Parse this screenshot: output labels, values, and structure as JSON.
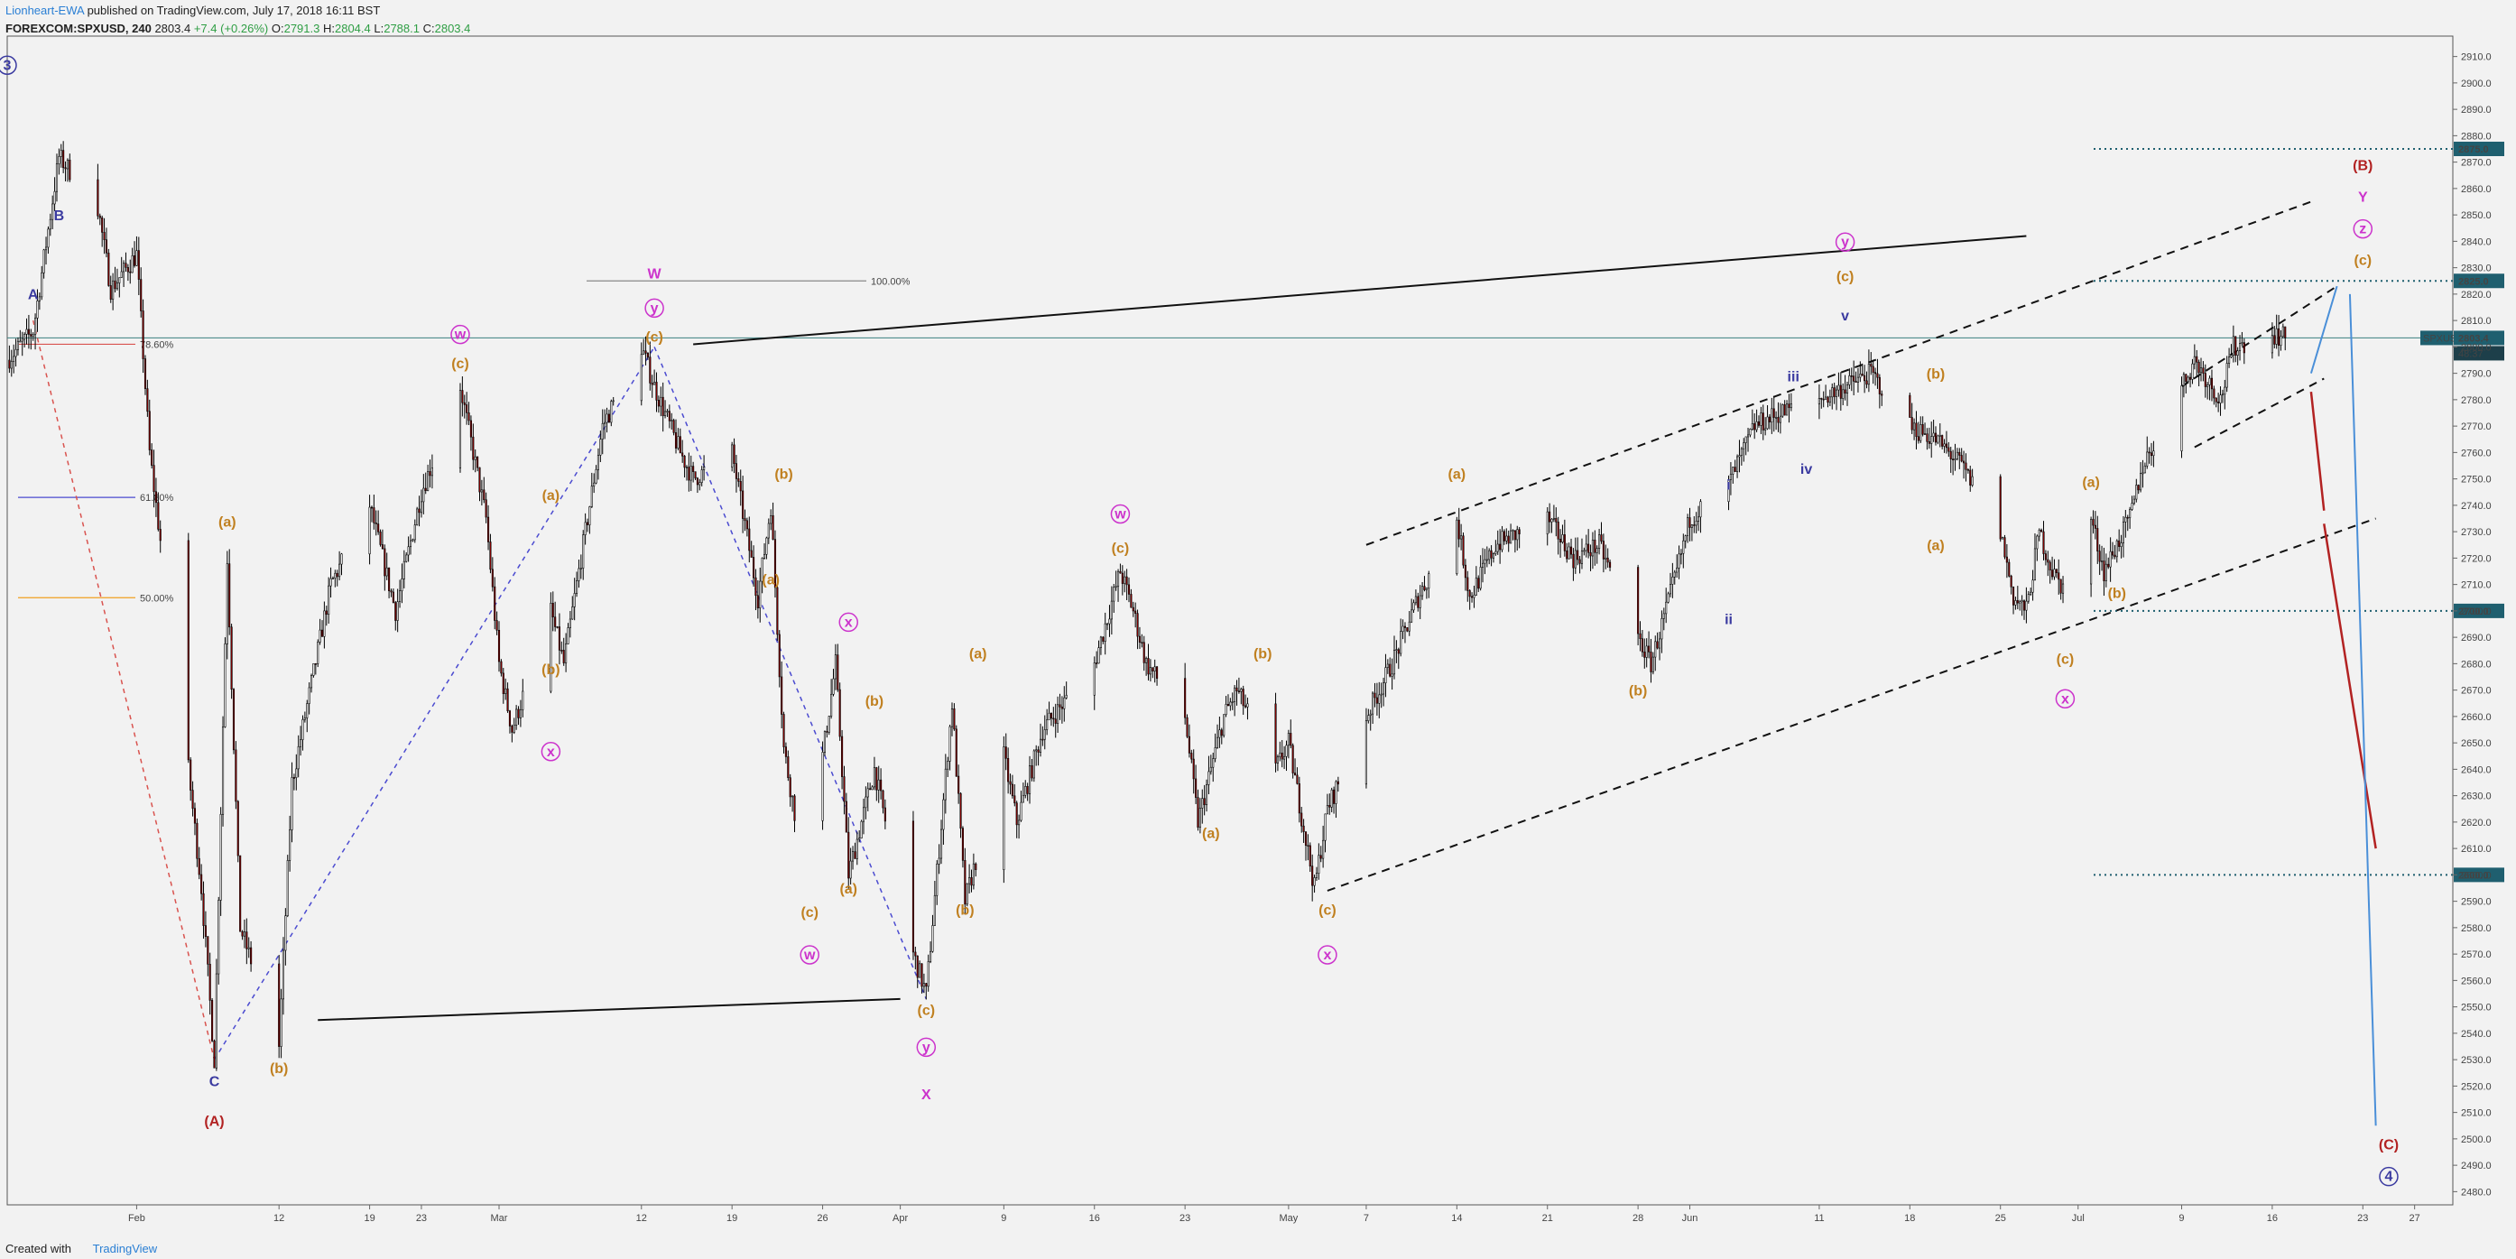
{
  "header": {
    "author": "Lionheart-EWA",
    "published": " published on TradingView.com, July 17, 2018 16:11 BST",
    "symbol": "FOREXCOM:SPXUSD, 240",
    "last": "2803.4",
    "change": "+7.4 (+0.26%)",
    "o_label": "O:",
    "o": "2791.3",
    "h_label": "H:",
    "h": "2804.4",
    "l_label": "L:",
    "l": "2788.1",
    "c_label": "C:",
    "c": "2803.4"
  },
  "footer": {
    "created_with": "Created with",
    "brand": "TradingView"
  },
  "colors": {
    "wave": "#c08020",
    "minor": "#3a3aa0",
    "corr": "#cc33cc",
    "red": "#b22222",
    "blue": "#4a8fd8",
    "level": "#1f5f6f"
  },
  "chart_data": {
    "type": "candlestick",
    "y_range": [
      2475,
      2915
    ],
    "y_ticks": [
      2480,
      2490,
      2500,
      2510,
      2520,
      2530,
      2540,
      2550,
      2560,
      2570,
      2580,
      2590,
      2600,
      2610,
      2620,
      2630,
      2640,
      2650,
      2660,
      2670,
      2680,
      2690,
      2700,
      2710,
      2720,
      2730,
      2740,
      2750,
      2760,
      2770,
      2780,
      2790,
      2800,
      2810,
      2820,
      2830,
      2840,
      2850,
      2860,
      2870,
      2880,
      2890,
      2900,
      2910
    ],
    "x_range": [
      "2018-01-22",
      "2018-07-28"
    ],
    "x_ticks": [
      {
        "date": "2018-02-01",
        "label": "Feb"
      },
      {
        "date": "2018-02-12",
        "label": "12"
      },
      {
        "date": "2018-02-19",
        "label": "19"
      },
      {
        "date": "2018-02-23",
        "label": "23"
      },
      {
        "date": "2018-03-01",
        "label": "Mar"
      },
      {
        "date": "2018-03-12",
        "label": "12"
      },
      {
        "date": "2018-03-19",
        "label": "19"
      },
      {
        "date": "2018-03-26",
        "label": "26"
      },
      {
        "date": "2018-04-01",
        "label": "Apr"
      },
      {
        "date": "2018-04-09",
        "label": "9"
      },
      {
        "date": "2018-04-16",
        "label": "16"
      },
      {
        "date": "2018-04-23",
        "label": "23"
      },
      {
        "date": "2018-05-01",
        "label": "May"
      },
      {
        "date": "2018-05-07",
        "label": "7"
      },
      {
        "date": "2018-05-14",
        "label": "14"
      },
      {
        "date": "2018-05-21",
        "label": "21"
      },
      {
        "date": "2018-05-28",
        "label": "28"
      },
      {
        "date": "2018-06-01",
        "label": "Jun"
      },
      {
        "date": "2018-06-11",
        "label": "11"
      },
      {
        "date": "2018-06-18",
        "label": "18"
      },
      {
        "date": "2018-06-25",
        "label": "25"
      },
      {
        "date": "2018-07-01",
        "label": "Jul"
      },
      {
        "date": "2018-07-09",
        "label": "9"
      },
      {
        "date": "2018-07-16",
        "label": "16"
      },
      {
        "date": "2018-07-23",
        "label": "23"
      },
      {
        "date": "2018-07-27",
        "label": "27"
      }
    ],
    "price_path": [
      [
        "2018-01-22",
        2795
      ],
      [
        "2018-01-24",
        2806
      ],
      [
        "2018-01-26",
        2872
      ],
      [
        "2018-01-29",
        2853
      ],
      [
        "2018-01-30",
        2822
      ],
      [
        "2018-02-01",
        2835
      ],
      [
        "2018-02-02",
        2760
      ],
      [
        "2018-02-05",
        2640
      ],
      [
        "2018-02-06",
        2595
      ],
      [
        "2018-02-07",
        2530
      ],
      [
        "2018-02-08",
        2720
      ],
      [
        "2018-02-09",
        2580
      ],
      [
        "2018-02-12",
        2535
      ],
      [
        "2018-02-13",
        2635
      ],
      [
        "2018-02-16",
        2710
      ],
      [
        "2018-02-19",
        2740
      ],
      [
        "2018-02-21",
        2700
      ],
      [
        "2018-02-23",
        2745
      ],
      [
        "2018-02-26",
        2785
      ],
      [
        "2018-02-28",
        2735
      ],
      [
        "2018-03-01",
        2680
      ],
      [
        "2018-03-02",
        2655
      ],
      [
        "2018-03-05",
        2700
      ],
      [
        "2018-03-06",
        2680
      ],
      [
        "2018-03-09",
        2770
      ],
      [
        "2018-03-12",
        2800
      ],
      [
        "2018-03-13",
        2785
      ],
      [
        "2018-03-15",
        2760
      ],
      [
        "2018-03-16",
        2750
      ],
      [
        "2018-03-19",
        2760
      ],
      [
        "2018-03-21",
        2705
      ],
      [
        "2018-03-22",
        2740
      ],
      [
        "2018-03-23",
        2648
      ],
      [
        "2018-03-25",
        2590
      ],
      [
        "2018-03-26",
        2645
      ],
      [
        "2018-03-27",
        2680
      ],
      [
        "2018-03-28",
        2600
      ],
      [
        "2018-03-30",
        2640
      ],
      [
        "2018-04-02",
        2570
      ],
      [
        "2018-04-03",
        2555
      ],
      [
        "2018-04-04",
        2610
      ],
      [
        "2018-04-05",
        2665
      ],
      [
        "2018-04-06",
        2590
      ],
      [
        "2018-04-09",
        2645
      ],
      [
        "2018-04-10",
        2620
      ],
      [
        "2018-04-12",
        2655
      ],
      [
        "2018-04-16",
        2680
      ],
      [
        "2018-04-18",
        2715
      ],
      [
        "2018-04-19",
        2700
      ],
      [
        "2018-04-20",
        2680
      ],
      [
        "2018-04-23",
        2660
      ],
      [
        "2018-04-24",
        2620
      ],
      [
        "2018-04-26",
        2660
      ],
      [
        "2018-04-27",
        2670
      ],
      [
        "2018-04-30",
        2640
      ],
      [
        "2018-05-01",
        2650
      ],
      [
        "2018-05-03",
        2595
      ],
      [
        "2018-05-04",
        2625
      ],
      [
        "2018-05-07",
        2660
      ],
      [
        "2018-05-09",
        2680
      ],
      [
        "2018-05-11",
        2705
      ],
      [
        "2018-05-14",
        2735
      ],
      [
        "2018-05-15",
        2705
      ],
      [
        "2018-05-17",
        2725
      ],
      [
        "2018-05-21",
        2735
      ],
      [
        "2018-05-23",
        2720
      ],
      [
        "2018-05-25",
        2725
      ],
      [
        "2018-05-28",
        2690
      ],
      [
        "2018-05-29",
        2680
      ],
      [
        "2018-05-31",
        2715
      ],
      [
        "2018-06-01",
        2735
      ],
      [
        "2018-06-04",
        2748
      ],
      [
        "2018-06-06",
        2770
      ],
      [
        "2018-06-08",
        2775
      ],
      [
        "2018-06-11",
        2780
      ],
      [
        "2018-06-13",
        2785
      ],
      [
        "2018-06-15",
        2790
      ],
      [
        "2018-06-18",
        2770
      ],
      [
        "2018-06-20",
        2765
      ],
      [
        "2018-06-22",
        2755
      ],
      [
        "2018-06-25",
        2730
      ],
      [
        "2018-06-26",
        2705
      ],
      [
        "2018-06-27",
        2700
      ],
      [
        "2018-06-28",
        2730
      ],
      [
        "2018-06-29",
        2715
      ],
      [
        "2018-07-01",
        2700
      ],
      [
        "2018-07-02",
        2735
      ],
      [
        "2018-07-03",
        2715
      ],
      [
        "2018-07-05",
        2735
      ],
      [
        "2018-07-06",
        2755
      ],
      [
        "2018-07-09",
        2785
      ],
      [
        "2018-07-10",
        2795
      ],
      [
        "2018-07-12",
        2780
      ],
      [
        "2018-07-13",
        2800
      ],
      [
        "2018-07-16",
        2805
      ],
      [
        "2018-07-17",
        2803.4
      ]
    ],
    "price_levels": [
      {
        "value": 2875.0,
        "label": "2875.0"
      },
      {
        "value": 2825.0,
        "label": "2825.0"
      },
      {
        "value": 2700.0,
        "label": "2700.0"
      },
      {
        "value": 2600.0,
        "label": "2600.0"
      }
    ],
    "current_price": {
      "value": 2803.4,
      "label": "2803.4",
      "symbol": "SPXUSD",
      "countdown": "48:37"
    },
    "fib_levels": [
      {
        "value": 2801,
        "label": "78.60%"
      },
      {
        "value": 2743,
        "label": "61.80%"
      },
      {
        "value": 2705,
        "label": "50.00%"
      },
      {
        "value": 2825,
        "label": "100.00%"
      }
    ],
    "wave_labels": [
      {
        "d": "2018-01-22",
        "v": 2905,
        "t": "3",
        "circled": true,
        "c": "minor"
      },
      {
        "d": "2018-01-26",
        "v": 2848,
        "t": "B",
        "c": "minor"
      },
      {
        "d": "2018-01-24",
        "v": 2818,
        "t": "A",
        "c": "minor"
      },
      {
        "d": "2018-02-07",
        "v": 2520,
        "t": "C",
        "c": "minor"
      },
      {
        "d": "2018-02-07",
        "v": 2505,
        "t": "(A)",
        "c": "red"
      },
      {
        "d": "2018-02-08",
        "v": 2732,
        "t": "(a)",
        "c": "wave"
      },
      {
        "d": "2018-02-12",
        "v": 2525,
        "t": "(b)",
        "c": "wave"
      },
      {
        "d": "2018-02-26",
        "v": 2803,
        "t": "w",
        "circled": true,
        "c": "corr"
      },
      {
        "d": "2018-02-26",
        "v": 2792,
        "t": "(c)",
        "c": "wave"
      },
      {
        "d": "2018-03-05",
        "v": 2742,
        "t": "(a)",
        "c": "wave"
      },
      {
        "d": "2018-03-05",
        "v": 2676,
        "t": "(b)",
        "c": "wave"
      },
      {
        "d": "2018-03-05",
        "v": 2645,
        "t": "x",
        "circled": true,
        "c": "corr"
      },
      {
        "d": "2018-03-13",
        "v": 2826,
        "t": "W",
        "c": "corr"
      },
      {
        "d": "2018-03-13",
        "v": 2813,
        "t": "y",
        "circled": true,
        "c": "corr"
      },
      {
        "d": "2018-03-13",
        "v": 2802,
        "t": "(c)",
        "c": "wave"
      },
      {
        "d": "2018-03-23",
        "v": 2750,
        "t": "(b)",
        "c": "wave"
      },
      {
        "d": "2018-03-22",
        "v": 2710,
        "t": "(a)",
        "c": "wave"
      },
      {
        "d": "2018-03-28",
        "v": 2694,
        "t": "x",
        "circled": true,
        "c": "corr"
      },
      {
        "d": "2018-03-30",
        "v": 2664,
        "t": "(b)",
        "c": "wave"
      },
      {
        "d": "2018-03-25",
        "v": 2584,
        "t": "(c)",
        "c": "wave"
      },
      {
        "d": "2018-03-25",
        "v": 2568,
        "t": "w",
        "circled": true,
        "c": "corr"
      },
      {
        "d": "2018-03-28",
        "v": 2593,
        "t": "(a)",
        "c": "wave"
      },
      {
        "d": "2018-04-03",
        "v": 2547,
        "t": "(c)",
        "c": "wave"
      },
      {
        "d": "2018-04-03",
        "v": 2533,
        "t": "y",
        "circled": true,
        "c": "corr"
      },
      {
        "d": "2018-04-03",
        "v": 2515,
        "t": "X",
        "c": "corr"
      },
      {
        "d": "2018-04-07",
        "v": 2682,
        "t": "(a)",
        "c": "wave"
      },
      {
        "d": "2018-04-06",
        "v": 2585,
        "t": "(b)",
        "c": "wave"
      },
      {
        "d": "2018-04-18",
        "v": 2735,
        "t": "w",
        "circled": true,
        "c": "corr"
      },
      {
        "d": "2018-04-18",
        "v": 2722,
        "t": "(c)",
        "c": "wave"
      },
      {
        "d": "2018-04-25",
        "v": 2614,
        "t": "(a)",
        "c": "wave"
      },
      {
        "d": "2018-04-29",
        "v": 2682,
        "t": "(b)",
        "c": "wave"
      },
      {
        "d": "2018-05-04",
        "v": 2585,
        "t": "(c)",
        "c": "wave"
      },
      {
        "d": "2018-05-04",
        "v": 2568,
        "t": "x",
        "circled": true,
        "c": "corr"
      },
      {
        "d": "2018-05-14",
        "v": 2750,
        "t": "(a)",
        "c": "wave"
      },
      {
        "d": "2018-05-28",
        "v": 2668,
        "t": "(b)",
        "c": "wave"
      },
      {
        "d": "2018-06-04",
        "v": 2746,
        "t": "i",
        "c": "minor"
      },
      {
        "d": "2018-06-04",
        "v": 2695,
        "t": "ii",
        "c": "minor"
      },
      {
        "d": "2018-06-09",
        "v": 2787,
        "t": "iii",
        "c": "minor"
      },
      {
        "d": "2018-06-10",
        "v": 2752,
        "t": "iv",
        "c": "minor"
      },
      {
        "d": "2018-06-13",
        "v": 2810,
        "t": "v",
        "c": "minor"
      },
      {
        "d": "2018-06-13",
        "v": 2838,
        "t": "y",
        "circled": true,
        "c": "corr"
      },
      {
        "d": "2018-06-13",
        "v": 2825,
        "t": "(c)",
        "c": "wave"
      },
      {
        "d": "2018-06-20",
        "v": 2788,
        "t": "(b)",
        "c": "wave"
      },
      {
        "d": "2018-06-20",
        "v": 2723,
        "t": "(a)",
        "c": "wave"
      },
      {
        "d": "2018-07-02",
        "v": 2747,
        "t": "(a)",
        "c": "wave"
      },
      {
        "d": "2018-06-30",
        "v": 2680,
        "t": "(c)",
        "c": "wave"
      },
      {
        "d": "2018-06-30",
        "v": 2665,
        "t": "x",
        "circled": true,
        "c": "corr"
      },
      {
        "d": "2018-07-04",
        "v": 2705,
        "t": "(b)",
        "c": "wave"
      },
      {
        "d": "2018-07-23",
        "v": 2867,
        "t": "(B)",
        "c": "red"
      },
      {
        "d": "2018-07-23",
        "v": 2855,
        "t": "Y",
        "c": "corr"
      },
      {
        "d": "2018-07-23",
        "v": 2843,
        "t": "z",
        "circled": true,
        "c": "corr"
      },
      {
        "d": "2018-07-23",
        "v": 2831,
        "t": "(c)",
        "c": "wave"
      },
      {
        "d": "2018-07-25",
        "v": 2496,
        "t": "(C)",
        "c": "red"
      },
      {
        "d": "2018-07-25",
        "v": 2484,
        "t": "4",
        "circled": true,
        "c": "minor"
      }
    ]
  }
}
